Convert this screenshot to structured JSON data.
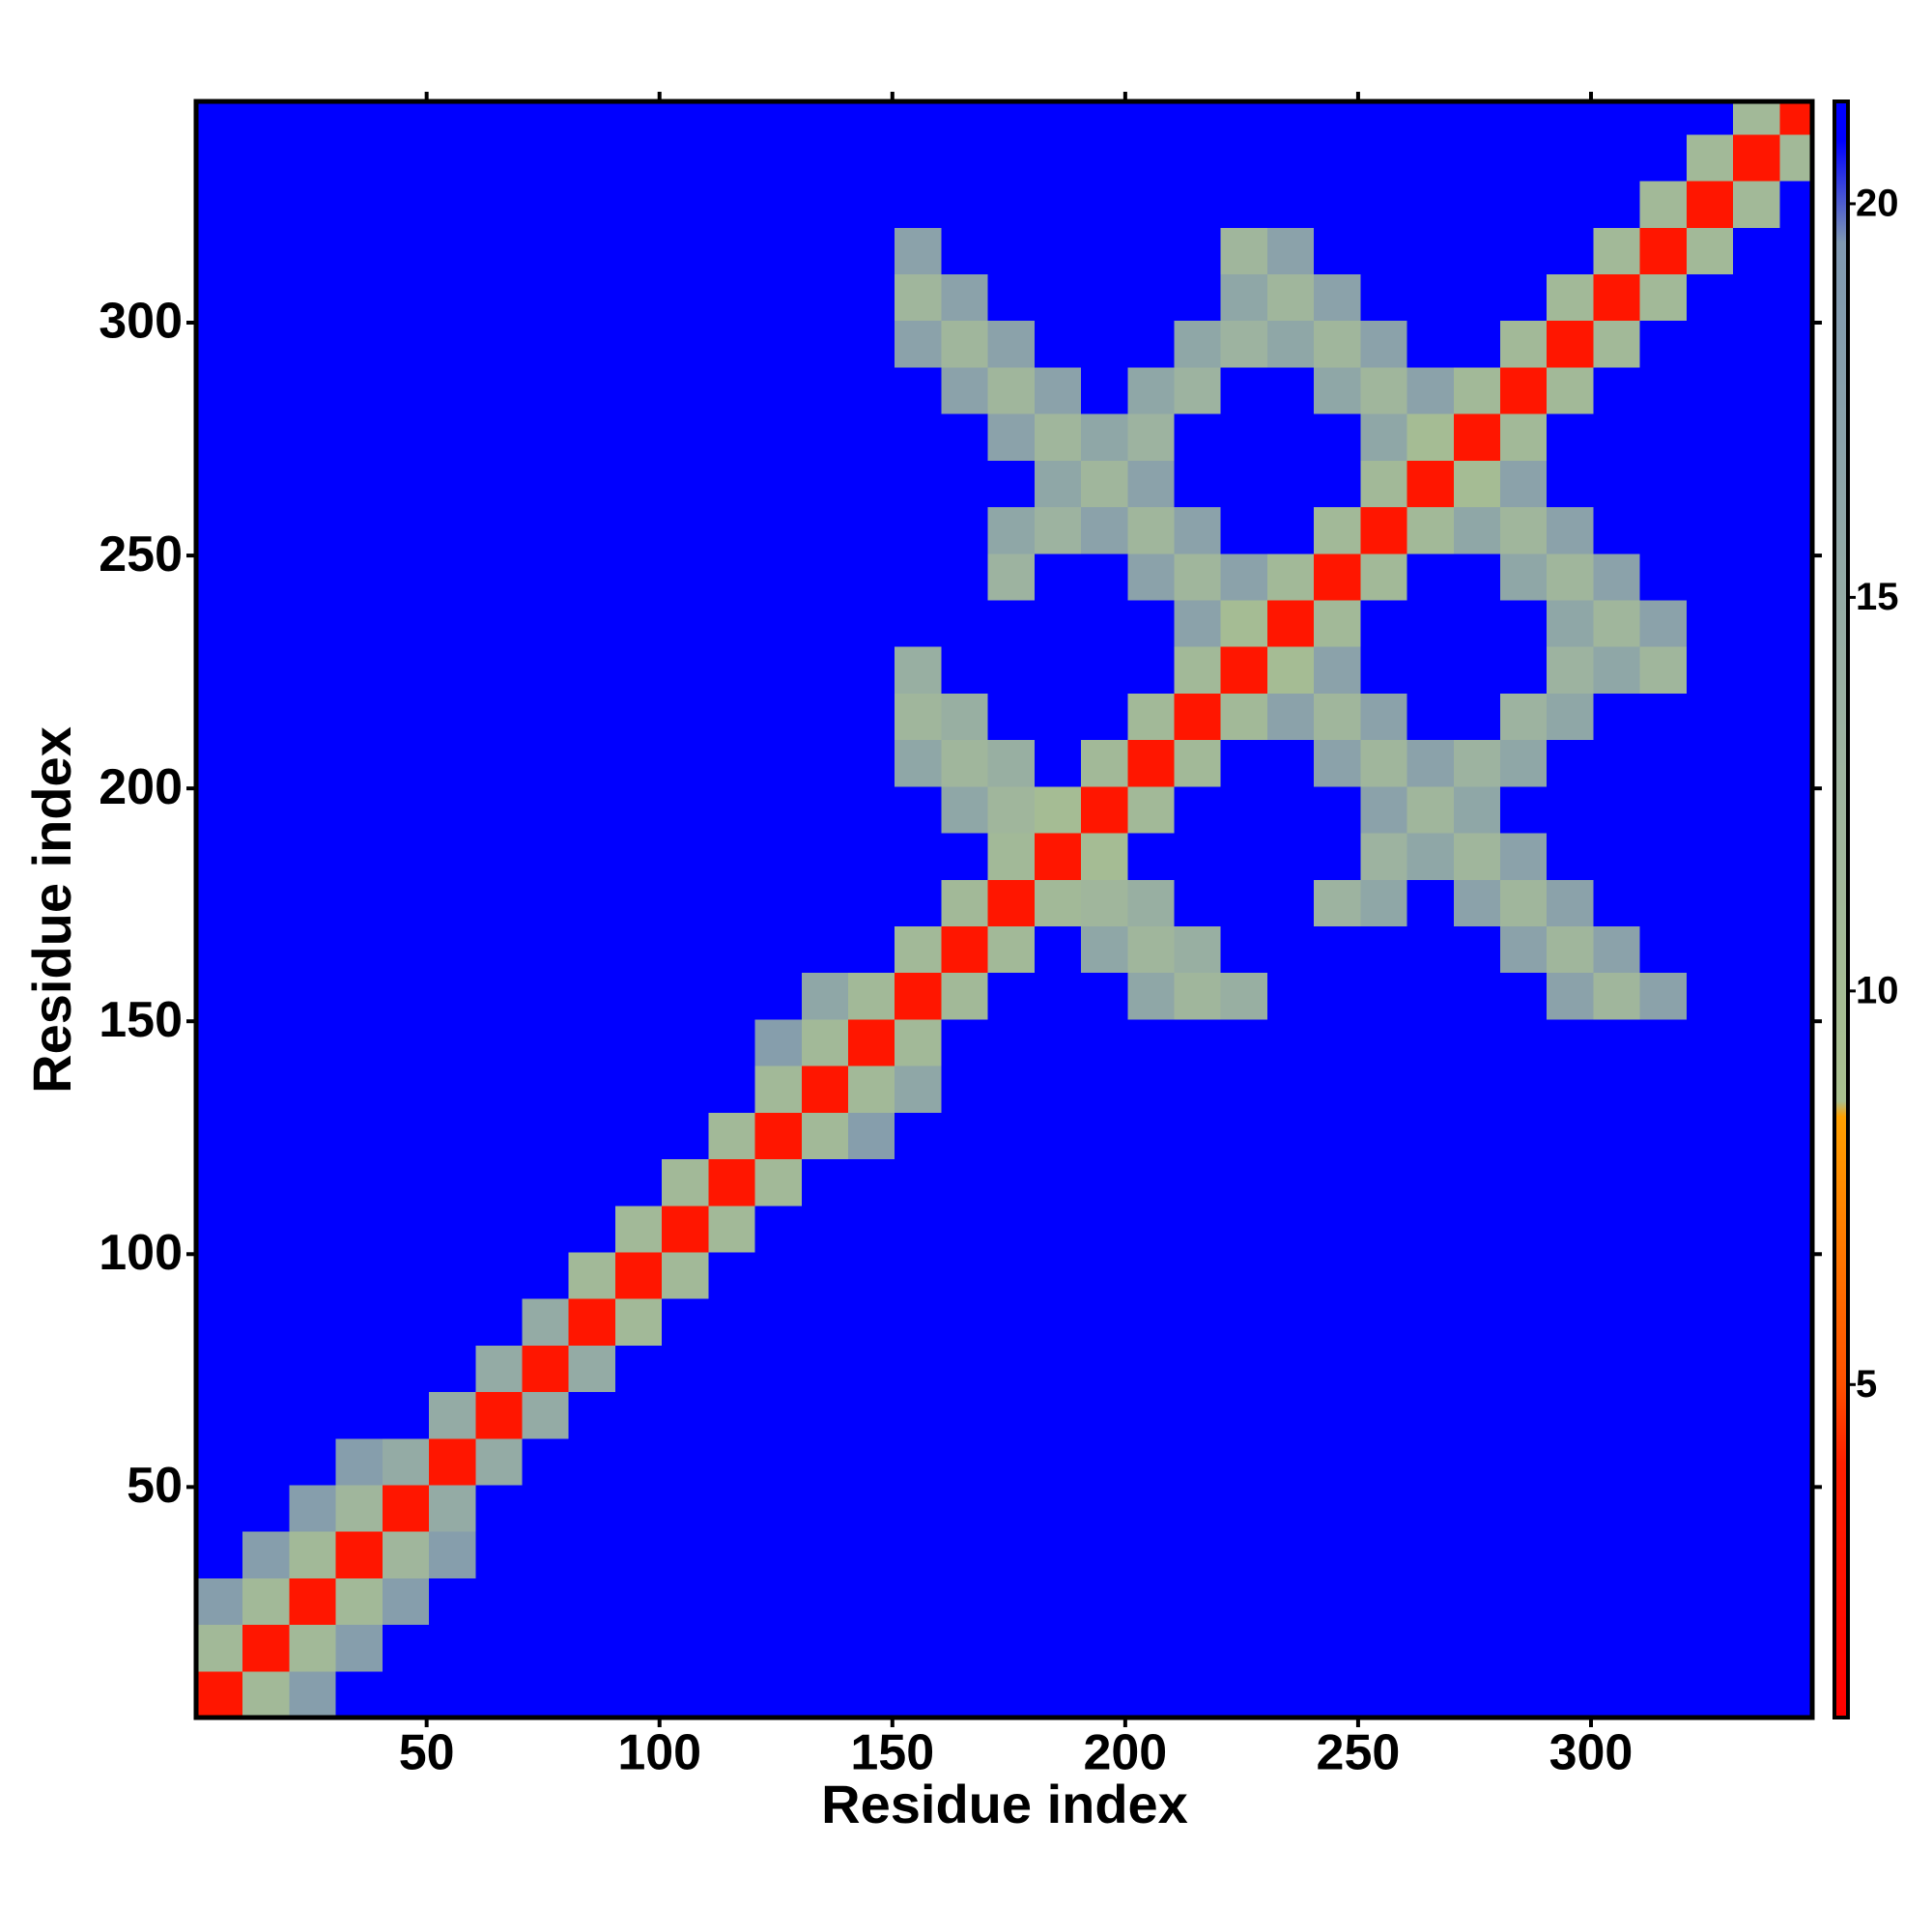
{
  "chart_data": {
    "type": "heatmap",
    "xlabel": "Residue index",
    "ylabel": "Residue index",
    "bins": [
      0.5,
      10.5,
      20.5,
      30.5,
      40.5,
      50.5,
      60.5,
      70.5,
      80.5,
      90.5,
      100.5,
      110.5,
      120.5,
      130.5,
      140.5,
      150.5,
      160.5,
      170.5,
      180.5,
      190.5,
      200.5,
      210.5,
      220.5,
      230.5,
      240.5,
      250.5,
      260.5,
      270.5,
      280.5,
      290.5,
      300.5,
      310.5,
      320.5,
      330.5,
      340.5,
      347.5
    ],
    "z": [
      [
        3,
        11,
        18,
        21,
        21,
        21,
        21,
        21,
        21,
        21,
        21,
        21,
        21,
        21,
        21,
        21,
        21,
        21,
        21,
        21,
        21,
        21,
        21,
        21,
        21,
        21,
        21,
        21,
        21,
        21,
        21,
        21,
        21,
        21,
        21
      ],
      [
        11,
        3,
        11,
        18,
        21,
        21,
        21,
        21,
        21,
        21,
        21,
        21,
        21,
        21,
        21,
        21,
        21,
        21,
        21,
        21,
        21,
        21,
        21,
        21,
        21,
        21,
        21,
        21,
        21,
        21,
        21,
        21,
        21,
        21,
        21
      ],
      [
        18,
        11,
        3,
        11,
        18,
        21,
        21,
        21,
        21,
        21,
        21,
        21,
        21,
        21,
        21,
        21,
        21,
        21,
        21,
        21,
        21,
        21,
        21,
        21,
        21,
        21,
        21,
        21,
        21,
        21,
        21,
        21,
        21,
        21,
        21
      ],
      [
        21,
        18,
        11,
        3,
        12,
        18,
        21,
        21,
        21,
        21,
        21,
        21,
        21,
        21,
        21,
        21,
        21,
        21,
        21,
        21,
        21,
        21,
        21,
        21,
        21,
        21,
        21,
        21,
        21,
        21,
        21,
        21,
        21,
        21,
        21
      ],
      [
        21,
        21,
        18,
        12,
        3,
        15,
        21,
        21,
        21,
        21,
        21,
        21,
        21,
        21,
        21,
        21,
        21,
        21,
        21,
        21,
        21,
        21,
        21,
        21,
        21,
        21,
        21,
        21,
        21,
        21,
        21,
        21,
        21,
        21,
        21
      ],
      [
        21,
        21,
        21,
        18,
        15,
        3,
        15,
        21,
        21,
        21,
        21,
        21,
        21,
        21,
        21,
        21,
        21,
        21,
        21,
        21,
        21,
        21,
        21,
        21,
        21,
        21,
        21,
        21,
        21,
        21,
        21,
        21,
        21,
        21,
        21
      ],
      [
        21,
        21,
        21,
        21,
        21,
        15,
        3,
        15,
        21,
        21,
        21,
        21,
        21,
        21,
        21,
        21,
        21,
        21,
        21,
        21,
        21,
        21,
        21,
        21,
        21,
        21,
        21,
        21,
        21,
        21,
        21,
        21,
        21,
        21,
        21
      ],
      [
        21,
        21,
        21,
        21,
        21,
        21,
        15,
        3,
        15,
        21,
        21,
        21,
        21,
        21,
        21,
        21,
        21,
        21,
        21,
        21,
        21,
        21,
        21,
        21,
        21,
        21,
        21,
        21,
        21,
        21,
        21,
        21,
        21,
        21,
        21
      ],
      [
        21,
        21,
        21,
        21,
        21,
        21,
        21,
        15,
        3,
        11,
        21,
        21,
        21,
        21,
        21,
        21,
        21,
        21,
        21,
        21,
        21,
        21,
        21,
        21,
        21,
        21,
        21,
        21,
        21,
        21,
        21,
        21,
        21,
        21,
        21
      ],
      [
        21,
        21,
        21,
        21,
        21,
        21,
        21,
        21,
        11,
        3,
        11,
        21,
        21,
        21,
        21,
        21,
        21,
        21,
        21,
        21,
        21,
        21,
        21,
        21,
        21,
        21,
        21,
        21,
        21,
        21,
        21,
        21,
        21,
        21,
        21
      ],
      [
        21,
        21,
        21,
        21,
        21,
        21,
        21,
        21,
        21,
        11,
        3,
        11,
        21,
        21,
        21,
        21,
        21,
        21,
        21,
        21,
        21,
        21,
        21,
        21,
        21,
        21,
        21,
        21,
        21,
        21,
        21,
        21,
        21,
        21,
        21
      ],
      [
        21,
        21,
        21,
        21,
        21,
        21,
        21,
        21,
        21,
        21,
        11,
        3,
        11,
        21,
        21,
        21,
        21,
        21,
        21,
        21,
        21,
        21,
        21,
        21,
        21,
        21,
        21,
        21,
        21,
        21,
        21,
        21,
        21,
        21,
        21
      ],
      [
        21,
        21,
        21,
        21,
        21,
        21,
        21,
        21,
        21,
        21,
        21,
        11,
        3,
        11,
        18,
        21,
        21,
        21,
        21,
        21,
        21,
        21,
        21,
        21,
        21,
        21,
        21,
        21,
        21,
        21,
        21,
        21,
        21,
        21,
        21
      ],
      [
        21,
        21,
        21,
        21,
        21,
        21,
        21,
        21,
        21,
        21,
        21,
        21,
        11,
        3,
        11,
        16,
        21,
        21,
        21,
        21,
        21,
        21,
        21,
        21,
        21,
        21,
        21,
        21,
        21,
        21,
        21,
        21,
        21,
        21,
        21
      ],
      [
        21,
        21,
        21,
        21,
        21,
        21,
        21,
        21,
        21,
        21,
        21,
        21,
        18,
        11,
        3,
        11,
        21,
        21,
        21,
        21,
        21,
        21,
        21,
        21,
        21,
        21,
        21,
        21,
        21,
        21,
        21,
        21,
        21,
        21,
        21
      ],
      [
        21,
        21,
        21,
        21,
        21,
        21,
        21,
        21,
        21,
        21,
        21,
        21,
        21,
        16,
        11,
        3,
        11,
        21,
        21,
        21,
        16,
        12,
        14,
        21,
        21,
        21,
        21,
        21,
        21,
        17,
        12,
        17,
        21,
        21,
        21
      ],
      [
        21,
        21,
        21,
        21,
        21,
        21,
        21,
        21,
        21,
        21,
        21,
        21,
        21,
        21,
        21,
        11,
        3,
        11,
        21,
        16,
        12,
        14,
        21,
        21,
        21,
        21,
        21,
        21,
        17,
        12,
        17,
        21,
        21,
        21,
        21
      ],
      [
        21,
        21,
        21,
        21,
        21,
        21,
        21,
        21,
        21,
        21,
        21,
        21,
        21,
        21,
        21,
        21,
        11,
        3,
        11,
        12,
        14,
        21,
        21,
        21,
        13,
        16,
        21,
        17,
        12,
        17,
        21,
        21,
        21,
        21,
        21
      ],
      [
        21,
        21,
        21,
        21,
        21,
        21,
        21,
        21,
        21,
        21,
        21,
        21,
        21,
        21,
        21,
        21,
        21,
        11,
        3,
        10,
        21,
        21,
        21,
        21,
        21,
        13,
        16,
        12,
        17,
        21,
        21,
        21,
        21,
        21,
        21
      ],
      [
        21,
        21,
        21,
        21,
        21,
        21,
        21,
        21,
        21,
        21,
        21,
        21,
        21,
        21,
        21,
        21,
        16,
        12,
        10,
        3,
        11,
        21,
        21,
        21,
        21,
        17,
        12,
        16,
        21,
        21,
        21,
        21,
        21,
        21,
        21
      ],
      [
        21,
        21,
        21,
        21,
        21,
        21,
        21,
        21,
        21,
        21,
        21,
        21,
        21,
        21,
        21,
        16,
        12,
        14,
        21,
        11,
        3,
        11,
        21,
        21,
        17,
        12,
        17,
        13,
        16,
        21,
        21,
        21,
        21,
        21,
        21
      ],
      [
        21,
        21,
        21,
        21,
        21,
        21,
        21,
        21,
        21,
        21,
        21,
        21,
        21,
        21,
        21,
        12,
        14,
        21,
        21,
        21,
        11,
        3,
        11,
        17,
        12,
        17,
        21,
        21,
        13,
        16,
        21,
        21,
        21,
        21,
        21
      ],
      [
        21,
        21,
        21,
        21,
        21,
        21,
        21,
        21,
        21,
        21,
        21,
        21,
        21,
        21,
        21,
        14,
        21,
        21,
        21,
        21,
        21,
        11,
        3,
        10,
        17,
        21,
        21,
        21,
        21,
        13,
        16,
        12,
        21,
        21,
        21
      ],
      [
        21,
        21,
        21,
        21,
        21,
        21,
        21,
        21,
        21,
        21,
        21,
        21,
        21,
        21,
        21,
        21,
        21,
        21,
        21,
        21,
        21,
        17,
        10,
        3,
        11,
        21,
        21,
        21,
        21,
        16,
        12,
        17,
        21,
        21,
        21
      ],
      [
        21,
        21,
        21,
        21,
        21,
        21,
        21,
        21,
        21,
        21,
        21,
        21,
        21,
        21,
        21,
        21,
        21,
        13,
        21,
        21,
        17,
        12,
        17,
        11,
        3,
        11,
        21,
        21,
        16,
        12,
        17,
        21,
        21,
        21,
        21
      ],
      [
        21,
        21,
        21,
        21,
        21,
        21,
        21,
        21,
        21,
        21,
        21,
        21,
        21,
        21,
        21,
        21,
        21,
        16,
        13,
        17,
        12,
        17,
        21,
        21,
        11,
        3,
        11,
        16,
        12,
        17,
        21,
        21,
        21,
        21,
        21
      ],
      [
        21,
        21,
        21,
        21,
        21,
        21,
        21,
        21,
        21,
        21,
        21,
        21,
        21,
        21,
        21,
        21,
        21,
        21,
        16,
        12,
        17,
        21,
        21,
        21,
        21,
        11,
        3,
        10,
        17,
        21,
        21,
        21,
        21,
        21,
        21
      ],
      [
        21,
        21,
        21,
        21,
        21,
        21,
        21,
        21,
        21,
        21,
        21,
        21,
        21,
        21,
        21,
        21,
        21,
        17,
        12,
        16,
        13,
        21,
        21,
        21,
        21,
        16,
        10,
        3,
        11,
        21,
        21,
        21,
        21,
        21,
        21
      ],
      [
        21,
        21,
        21,
        21,
        21,
        21,
        21,
        21,
        21,
        21,
        21,
        21,
        21,
        21,
        21,
        21,
        17,
        12,
        17,
        21,
        16,
        13,
        21,
        21,
        16,
        12,
        17,
        11,
        3,
        11,
        21,
        21,
        21,
        21,
        21
      ],
      [
        21,
        21,
        21,
        21,
        21,
        21,
        21,
        21,
        21,
        21,
        21,
        21,
        21,
        21,
        21,
        17,
        12,
        17,
        21,
        21,
        21,
        16,
        13,
        16,
        12,
        17,
        21,
        21,
        11,
        3,
        11,
        21,
        21,
        21,
        21
      ],
      [
        21,
        21,
        21,
        21,
        21,
        21,
        21,
        21,
        21,
        21,
        21,
        21,
        21,
        21,
        21,
        12,
        17,
        21,
        21,
        21,
        21,
        21,
        16,
        12,
        17,
        21,
        21,
        21,
        21,
        11,
        3,
        11,
        21,
        21,
        21
      ],
      [
        21,
        21,
        21,
        21,
        21,
        21,
        21,
        21,
        21,
        21,
        21,
        21,
        21,
        21,
        21,
        17,
        21,
        21,
        21,
        21,
        21,
        21,
        12,
        17,
        21,
        21,
        21,
        21,
        21,
        21,
        11,
        3,
        11,
        21,
        21
      ],
      [
        21,
        21,
        21,
        21,
        21,
        21,
        21,
        21,
        21,
        21,
        21,
        21,
        21,
        21,
        21,
        21,
        21,
        21,
        21,
        21,
        21,
        21,
        21,
        21,
        21,
        21,
        21,
        21,
        21,
        21,
        21,
        11,
        3,
        11,
        21
      ],
      [
        21,
        21,
        21,
        21,
        21,
        21,
        21,
        21,
        21,
        21,
        21,
        21,
        21,
        21,
        21,
        21,
        21,
        21,
        21,
        21,
        21,
        21,
        21,
        21,
        21,
        21,
        21,
        21,
        21,
        21,
        21,
        21,
        11,
        3,
        11
      ],
      [
        21,
        21,
        21,
        21,
        21,
        21,
        21,
        21,
        21,
        21,
        21,
        21,
        21,
        21,
        21,
        21,
        21,
        21,
        21,
        21,
        21,
        21,
        21,
        21,
        21,
        21,
        21,
        21,
        21,
        21,
        21,
        21,
        21,
        11,
        3
      ]
    ],
    "xlim": [
      0.5,
      347.5
    ],
    "ylim": [
      0.5,
      347.5
    ],
    "xticks": [
      50,
      100,
      150,
      200,
      250,
      300
    ],
    "yticks": [
      50,
      100,
      150,
      200,
      250,
      300
    ],
    "clim": [
      0.77,
      21.3
    ],
    "cticks": [
      5,
      10,
      15,
      20
    ],
    "colorscale": [
      {
        "value": 0.77,
        "color": "#ff0000"
      },
      {
        "value": 4,
        "color": "#ff2000"
      },
      {
        "value": 5,
        "color": "#ff5000"
      },
      {
        "value": 8.4,
        "color": "#ffa000"
      },
      {
        "value": 8.6,
        "color": "#a9c08e"
      },
      {
        "value": 13,
        "color": "#9db3a0"
      },
      {
        "value": 19.5,
        "color": "#7f98b0"
      },
      {
        "value": 20.8,
        "color": "#0000ff"
      },
      {
        "value": 21.3,
        "color": "#0000ff"
      }
    ]
  }
}
